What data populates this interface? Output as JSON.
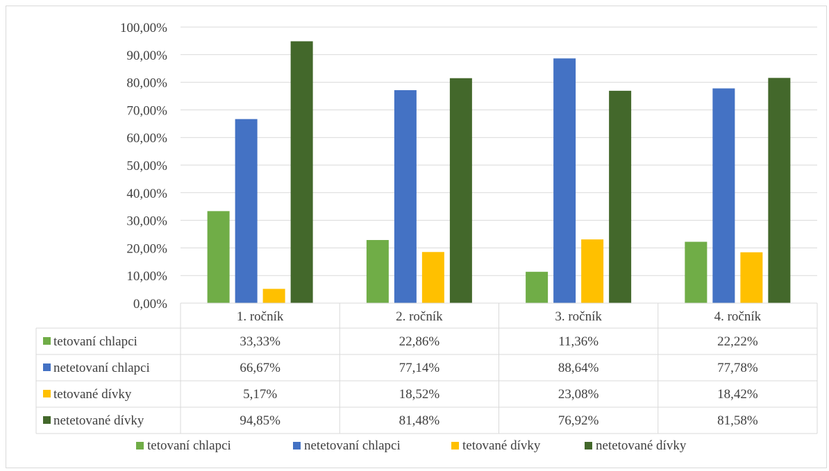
{
  "chart_data": {
    "type": "bar",
    "categories": [
      "1. ročník",
      "2. ročník",
      "3. ročník",
      "4. ročník"
    ],
    "series": [
      {
        "name": "tetovaní chlapci",
        "color": "#70ad47",
        "values": [
          33.33,
          22.86,
          11.36,
          22.22
        ],
        "labels": [
          "33,33%",
          "22,86%",
          "11,36%",
          "22,22%"
        ]
      },
      {
        "name": "netetovaní chlapci",
        "color": "#4472c4",
        "values": [
          66.67,
          77.14,
          88.64,
          77.78
        ],
        "labels": [
          "66,67%",
          "77,14%",
          "88,64%",
          "77,78%"
        ]
      },
      {
        "name": "tetované dívky",
        "color": "#ffc000",
        "values": [
          5.17,
          18.52,
          23.08,
          18.42
        ],
        "labels": [
          "5,17%",
          "18,52%",
          "23,08%",
          "18,42%"
        ]
      },
      {
        "name": "netetované dívky",
        "color": "#43682b",
        "values": [
          94.85,
          81.48,
          76.92,
          81.58
        ],
        "labels": [
          "94,85%",
          "81,48%",
          "76,92%",
          "81,58%"
        ]
      }
    ],
    "ylim": [
      0,
      100
    ],
    "yticks": [
      0,
      10,
      20,
      30,
      40,
      50,
      60,
      70,
      80,
      90,
      100
    ],
    "ytick_labels": [
      "0,00%",
      "10,00%",
      "20,00%",
      "30,00%",
      "40,00%",
      "50,00%",
      "60,00%",
      "70,00%",
      "80,00%",
      "90,00%",
      "100,00%"
    ],
    "grid": true,
    "data_table": true,
    "legend_position": "bottom"
  }
}
